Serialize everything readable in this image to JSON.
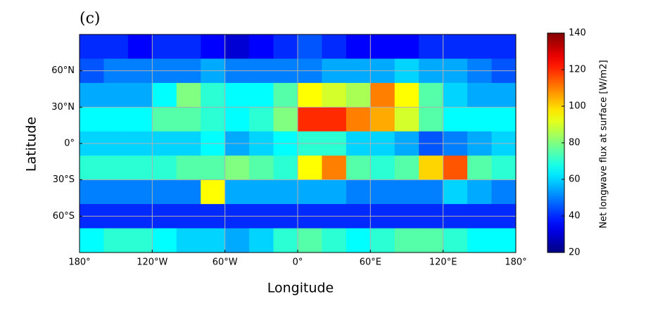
{
  "chart_data": {
    "type": "heatmap",
    "panel_label": "(c)",
    "xlabel": "Longitude",
    "ylabel": "Latitude",
    "colorbar_label": "Net longwave flux at surface  [W/m2]",
    "colormap": "jet",
    "grid": true,
    "xlim": [
      -180,
      180
    ],
    "ylim": [
      -90,
      90
    ],
    "xticks": [
      {
        "value": -180,
        "label": "180°"
      },
      {
        "value": -120,
        "label": "120°W"
      },
      {
        "value": -60,
        "label": "60°W"
      },
      {
        "value": 0,
        "label": "0°"
      },
      {
        "value": 60,
        "label": "60°E"
      },
      {
        "value": 120,
        "label": "120°E"
      },
      {
        "value": 180,
        "label": "180°"
      }
    ],
    "yticks": [
      {
        "value": 60,
        "label": "60°N"
      },
      {
        "value": 30,
        "label": "30°N"
      },
      {
        "value": 0,
        "label": "0°"
      },
      {
        "value": -30,
        "label": "30°S"
      },
      {
        "value": -60,
        "label": "60°S"
      }
    ],
    "clim": [
      20,
      140
    ],
    "cticks": [
      20,
      40,
      60,
      80,
      100,
      120,
      140
    ],
    "x": [
      -170,
      -150,
      -130,
      -110,
      -90,
      -70,
      -50,
      -30,
      -10,
      10,
      30,
      50,
      70,
      90,
      110,
      130,
      150,
      170
    ],
    "y": [
      80,
      60,
      40,
      20,
      0,
      -20,
      -40,
      -60,
      -80
    ],
    "z": [
      [
        40,
        40,
        35,
        40,
        40,
        35,
        30,
        35,
        40,
        45,
        40,
        35,
        35,
        35,
        40,
        40,
        40,
        40
      ],
      [
        45,
        50,
        50,
        50,
        50,
        55,
        50,
        50,
        50,
        50,
        55,
        55,
        55,
        60,
        55,
        55,
        50,
        45
      ],
      [
        55,
        55,
        55,
        65,
        80,
        70,
        65,
        65,
        75,
        95,
        90,
        85,
        110,
        95,
        75,
        60,
        55,
        55
      ],
      [
        65,
        65,
        65,
        75,
        75,
        70,
        65,
        70,
        80,
        120,
        120,
        110,
        105,
        90,
        75,
        65,
        65,
        65
      ],
      [
        60,
        60,
        60,
        60,
        60,
        65,
        55,
        60,
        65,
        70,
        70,
        60,
        60,
        55,
        45,
        50,
        55,
        60
      ],
      [
        70,
        70,
        70,
        70,
        75,
        75,
        80,
        75,
        70,
        95,
        110,
        75,
        70,
        75,
        100,
        115,
        75,
        70
      ],
      [
        50,
        50,
        50,
        50,
        50,
        95,
        55,
        55,
        55,
        55,
        55,
        50,
        50,
        50,
        50,
        60,
        55,
        50
      ],
      [
        40,
        40,
        40,
        40,
        40,
        40,
        40,
        40,
        40,
        40,
        40,
        40,
        40,
        40,
        40,
        40,
        40,
        40
      ],
      [
        65,
        70,
        70,
        65,
        60,
        60,
        55,
        60,
        70,
        75,
        70,
        65,
        70,
        75,
        75,
        70,
        65,
        65
      ]
    ]
  }
}
